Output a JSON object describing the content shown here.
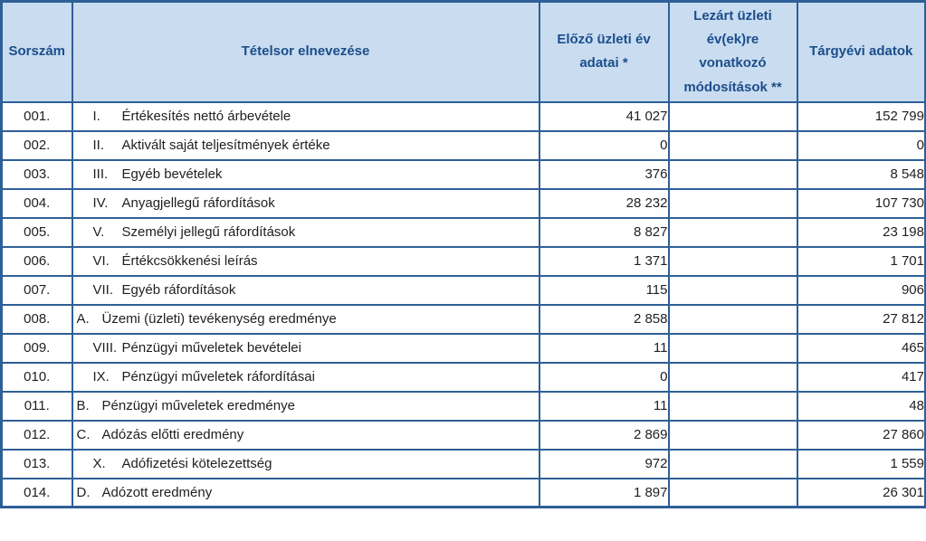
{
  "colors": {
    "border": "#2e5f96",
    "header_bg": "#c9dcf0",
    "header_text": "#1b4e8a",
    "body_text": "#1f1f1f"
  },
  "table": {
    "columns": [
      {
        "label": "Sorszám"
      },
      {
        "label": "Tételsor elnevezése"
      },
      {
        "label": "Előző üzleti év adatai *"
      },
      {
        "label": "Lezárt üzleti év(ek)re vonatkozó módosítások **"
      },
      {
        "label": "Tárgyévi adatok"
      }
    ],
    "rows": [
      {
        "num": "001.",
        "prefix": "I.",
        "type": "roman",
        "name": "Értékesítés nettó árbevétele",
        "prev": "41 027",
        "mod": "",
        "curr": "152 799"
      },
      {
        "num": "002.",
        "prefix": "II.",
        "type": "roman",
        "name": "Aktivált saját teljesítmények értéke",
        "prev": "0",
        "mod": "",
        "curr": "0"
      },
      {
        "num": "003.",
        "prefix": "III.",
        "type": "roman",
        "name": "Egyéb bevételek",
        "prev": "376",
        "mod": "",
        "curr": "8 548"
      },
      {
        "num": "004.",
        "prefix": "IV.",
        "type": "roman",
        "name": "Anyagjellegű ráfordítások",
        "prev": "28 232",
        "mod": "",
        "curr": "107 730"
      },
      {
        "num": "005.",
        "prefix": "V.",
        "type": "roman",
        "name": "Személyi jellegű ráfordítások",
        "prev": "8 827",
        "mod": "",
        "curr": "23 198"
      },
      {
        "num": "006.",
        "prefix": "VI.",
        "type": "roman",
        "name": "Értékcsökkenési leírás",
        "prev": "1 371",
        "mod": "",
        "curr": "1 701"
      },
      {
        "num": "007.",
        "prefix": "VII.",
        "type": "roman",
        "name": "Egyéb ráfordítások",
        "prev": "115",
        "mod": "",
        "curr": "906"
      },
      {
        "num": "008.",
        "prefix": "A.",
        "type": "letter",
        "name": "Üzemi (üzleti) tevékenység eredménye",
        "prev": "2 858",
        "mod": "",
        "curr": "27 812"
      },
      {
        "num": "009.",
        "prefix": "VIII.",
        "type": "roman",
        "name": "Pénzügyi műveletek bevételei",
        "prev": "11",
        "mod": "",
        "curr": "465"
      },
      {
        "num": "010.",
        "prefix": "IX.",
        "type": "roman",
        "name": "Pénzügyi műveletek ráfordításai",
        "prev": "0",
        "mod": "",
        "curr": "417"
      },
      {
        "num": "011.",
        "prefix": "B.",
        "type": "letter",
        "name": "Pénzügyi műveletek eredménye",
        "prev": "11",
        "mod": "",
        "curr": "48"
      },
      {
        "num": "012.",
        "prefix": "C.",
        "type": "letter",
        "name": "Adózás előtti eredmény",
        "prev": "2 869",
        "mod": "",
        "curr": "27 860"
      },
      {
        "num": "013.",
        "prefix": "X.",
        "type": "roman",
        "name": "Adófizetési kötelezettség",
        "prev": "972",
        "mod": "",
        "curr": "1 559"
      },
      {
        "num": "014.",
        "prefix": "D.",
        "type": "letter",
        "name": "Adózott eredmény",
        "prev": "1 897",
        "mod": "",
        "curr": "26 301"
      }
    ]
  }
}
